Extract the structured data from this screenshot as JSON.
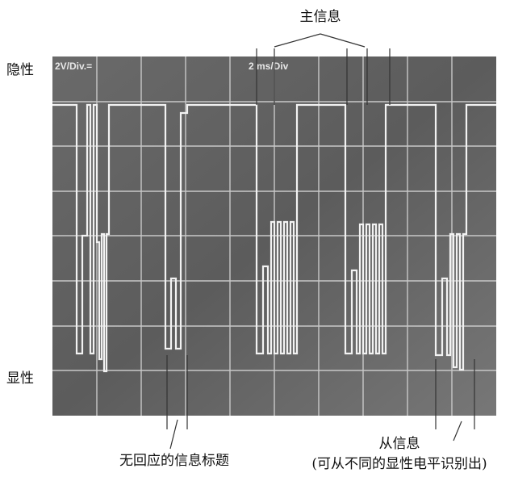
{
  "labels": {
    "master_message": "主信息",
    "recessive": "隐性",
    "dominant": "显性",
    "volt_div": "2V/Div.=",
    "time_div": "2 ms/Div",
    "no_response": "无回应的信息标题",
    "slave_message": "从信息",
    "slave_note": "(可从不同的显性电平识别出)"
  }
}
